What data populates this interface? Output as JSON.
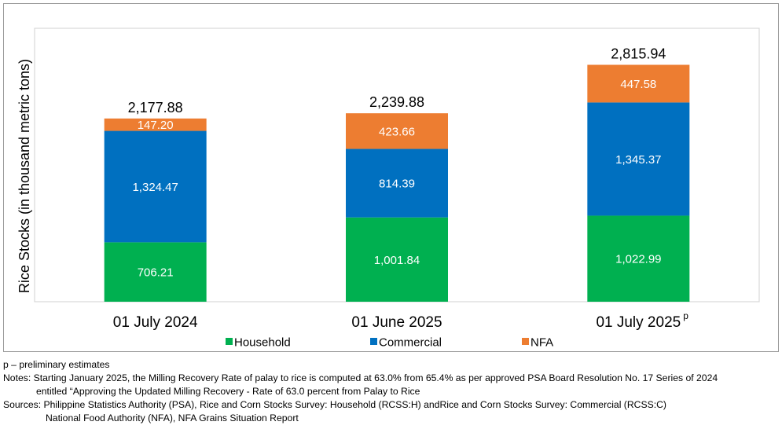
{
  "chart_data": {
    "type": "bar",
    "stacked": true,
    "categories": [
      "01 July 2024",
      "01 June 2025",
      "01 July 2025"
    ],
    "category_superscripts": [
      "",
      "",
      "p"
    ],
    "ylabel": "Rice Stocks (in thousand metric tons)",
    "totals": [
      "2,177.88",
      "2,239.88",
      "2,815.94"
    ],
    "series": [
      {
        "name": "Household",
        "color": "#00b050",
        "values": [
          706.21,
          1001.84,
          1022.99
        ],
        "labels": [
          "706.21",
          "1,001.84",
          "1,022.99"
        ]
      },
      {
        "name": "Commercial",
        "color": "#0070c0",
        "values": [
          1324.47,
          814.39,
          1345.37
        ],
        "labels": [
          "1,324.47",
          "814.39",
          "1,345.37"
        ]
      },
      {
        "name": "NFA",
        "color": "#ed7d31",
        "values": [
          147.2,
          423.66,
          447.58
        ],
        "labels": [
          "147.20",
          "423.66",
          "447.58"
        ]
      }
    ],
    "ylim": [
      0,
      3250
    ],
    "grid": false,
    "legend": "bottom"
  },
  "notes": {
    "preliminary": "p – preliminary estimates",
    "notes_line1": "Notes: Starting January 2025,  the Milling Recovery Rate of palay to rice is computed at 63.0%  from 65.4% as per approved PSA Board Resolution No. 17 Series of 2024",
    "notes_line2": "entitled “Approving the Updated Milling Recovery - Rate of 63.0 percent from Palay to Rice",
    "sources_line1": "Sources: Philippine Statistics Authority (PSA), Rice and Corn Stocks Survey: Household (RCSS:H) andRice and Corn Stocks Survey: Commercial (RCSS:C)",
    "sources_line2": "National Food Authority (NFA), NFA Grains Situation Report"
  }
}
